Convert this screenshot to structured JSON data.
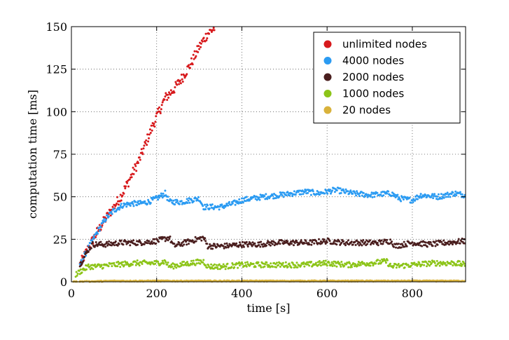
{
  "chart_data": {
    "type": "scatter",
    "title": "",
    "xlabel": "time [s]",
    "ylabel": "computation time [ms]",
    "xlim": [
      0,
      925
    ],
    "ylim": [
      0,
      150
    ],
    "xticks": [
      0,
      200,
      400,
      600,
      800
    ],
    "yticks": [
      0,
      25,
      50,
      75,
      100,
      125,
      150
    ],
    "grid": true,
    "legend_position": "top-right",
    "series": [
      {
        "name": "unlimited nodes",
        "color": "#d7191c",
        "points": [
          [
            20,
            10
          ],
          [
            40,
            20
          ],
          [
            60,
            29
          ],
          [
            80,
            37
          ],
          [
            100,
            44
          ],
          [
            120,
            52
          ],
          [
            140,
            62
          ],
          [
            160,
            72
          ],
          [
            180,
            85
          ],
          [
            200,
            97
          ],
          [
            220,
            108
          ],
          [
            240,
            113
          ],
          [
            260,
            120
          ],
          [
            280,
            128
          ],
          [
            300,
            138
          ],
          [
            320,
            146
          ],
          [
            340,
            150
          ]
        ]
      },
      {
        "name": "4000 nodes",
        "color": "#2b9bf2",
        "points": [
          [
            20,
            10
          ],
          [
            40,
            20
          ],
          [
            60,
            29
          ],
          [
            80,
            37
          ],
          [
            100,
            42
          ],
          [
            120,
            45
          ],
          [
            140,
            46
          ],
          [
            160,
            46
          ],
          [
            180,
            47
          ],
          [
            200,
            49
          ],
          [
            220,
            52
          ],
          [
            230,
            47
          ],
          [
            260,
            47
          ],
          [
            300,
            49
          ],
          [
            310,
            44
          ],
          [
            350,
            44
          ],
          [
            380,
            46
          ],
          [
            400,
            48
          ],
          [
            450,
            50
          ],
          [
            490,
            51
          ],
          [
            520,
            52
          ],
          [
            550,
            53
          ],
          [
            580,
            52
          ],
          [
            620,
            54
          ],
          [
            660,
            52
          ],
          [
            700,
            51
          ],
          [
            750,
            52
          ],
          [
            770,
            49
          ],
          [
            800,
            48
          ],
          [
            820,
            51
          ],
          [
            860,
            50
          ],
          [
            900,
            52
          ],
          [
            925,
            51
          ]
        ]
      },
      {
        "name": "2000 nodes",
        "color": "#4a1e1e",
        "points": [
          [
            20,
            10
          ],
          [
            40,
            19
          ],
          [
            50,
            22
          ],
          [
            80,
            22
          ],
          [
            120,
            23
          ],
          [
            160,
            23
          ],
          [
            200,
            24
          ],
          [
            230,
            26
          ],
          [
            240,
            21
          ],
          [
            280,
            24
          ],
          [
            310,
            26
          ],
          [
            320,
            21
          ],
          [
            360,
            21
          ],
          [
            400,
            22
          ],
          [
            440,
            22
          ],
          [
            480,
            23
          ],
          [
            520,
            23
          ],
          [
            560,
            23
          ],
          [
            600,
            24
          ],
          [
            640,
            23
          ],
          [
            680,
            23
          ],
          [
            720,
            23
          ],
          [
            750,
            24
          ],
          [
            760,
            21
          ],
          [
            800,
            23
          ],
          [
            840,
            22
          ],
          [
            880,
            23
          ],
          [
            925,
            24
          ]
        ]
      },
      {
        "name": "1000 nodes",
        "color": "#8cc418",
        "points": [
          [
            10,
            4
          ],
          [
            20,
            6
          ],
          [
            40,
            9
          ],
          [
            60,
            9
          ],
          [
            100,
            10
          ],
          [
            150,
            11
          ],
          [
            200,
            11
          ],
          [
            220,
            12
          ],
          [
            230,
            9
          ],
          [
            280,
            11
          ],
          [
            310,
            12
          ],
          [
            320,
            9
          ],
          [
            360,
            9
          ],
          [
            400,
            10
          ],
          [
            450,
            10
          ],
          [
            500,
            10
          ],
          [
            550,
            10
          ],
          [
            600,
            11
          ],
          [
            650,
            10
          ],
          [
            700,
            11
          ],
          [
            740,
            12
          ],
          [
            750,
            9
          ],
          [
            800,
            10
          ],
          [
            850,
            11
          ],
          [
            900,
            11
          ],
          [
            925,
            10
          ]
        ]
      },
      {
        "name": "20 nodes",
        "color": "#d9b23b",
        "points": [
          [
            0,
            0
          ],
          [
            100,
            0.5
          ],
          [
            200,
            0.5
          ],
          [
            300,
            0.5
          ],
          [
            400,
            0.5
          ],
          [
            500,
            0.5
          ],
          [
            600,
            0.5
          ],
          [
            700,
            0.5
          ],
          [
            800,
            0.5
          ],
          [
            925,
            0.5
          ]
        ]
      }
    ]
  }
}
